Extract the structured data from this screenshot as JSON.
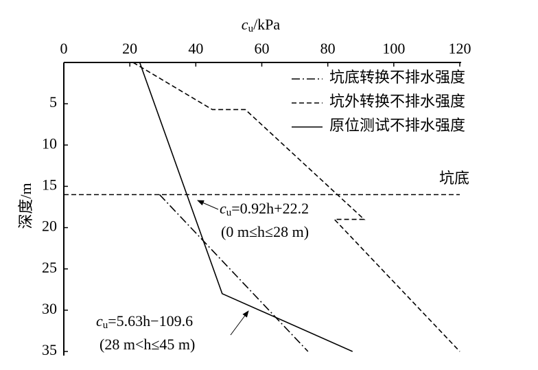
{
  "chart_data": {
    "type": "line",
    "x_label": {
      "base": "c",
      "sub": "u",
      "rest": "/kPa"
    },
    "y_label": "深度/m",
    "xlim": [
      0,
      120
    ],
    "xticks": [
      0,
      20,
      40,
      60,
      80,
      100,
      120
    ],
    "ylim": [
      0,
      35
    ],
    "yticks": [
      5,
      10,
      15,
      20,
      25,
      30,
      35
    ],
    "y_inverted": true,
    "series": [
      {
        "name": "坑底转换不排水强度",
        "color": "#000000",
        "dash": "dashdot",
        "x": [
          29,
          74
        ],
        "values": [
          16,
          35
        ]
      },
      {
        "name": "坑外转换不排水强度",
        "color": "#000000",
        "dash": "dashed",
        "x": [
          21,
          45,
          55,
          91,
          82,
          120
        ],
        "values": [
          0,
          5.7,
          5.7,
          19,
          19,
          35
        ]
      },
      {
        "name": "原位测试不排水强度",
        "color": "#000000",
        "dash": "solid",
        "x": [
          23,
          48,
          87.5
        ],
        "values": [
          0,
          28,
          35
        ]
      }
    ],
    "pit_bottom": {
      "label": "坑底",
      "value": 16
    },
    "annotations": [
      {
        "base": "c",
        "sub": "u",
        "rest": "=0.92h+22.2",
        "range": "(0 m≤h≤28 m)"
      },
      {
        "base": "c",
        "sub": "u",
        "rest": "=5.63h−109.6",
        "range": "(28 m<h≤45 m)"
      }
    ]
  }
}
